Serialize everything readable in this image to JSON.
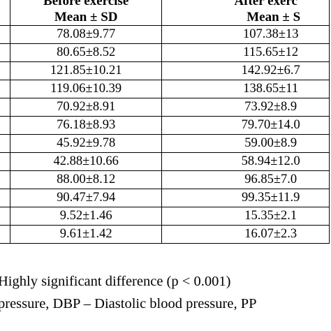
{
  "table": {
    "headers": {
      "before": {
        "line1": "Before exercise",
        "line2": "Mean ± SD"
      },
      "after": {
        "line1": "After exerc",
        "line2": "Mean ± S"
      }
    },
    "rows": [
      {
        "before": "78.08±9.77",
        "after": "107.38±13"
      },
      {
        "before": "80.65±8.52",
        "after": "115.65±12"
      },
      {
        "before": "121.85±10.21",
        "after": "142.92±6.7"
      },
      {
        "before": "119.06±10.39",
        "after": "138.65±11"
      },
      {
        "before": "70.92±8.91",
        "after": "73.92±8.9"
      },
      {
        "before": "76.18±8.93",
        "after": "79.70±14.0"
      },
      {
        "before": "45.92±9.78",
        "after": "59.00±8.9"
      },
      {
        "before": "42.88±10.66",
        "after": "58.94±12.0"
      },
      {
        "before": "88.00±8.12",
        "after": "96.85±7.0"
      },
      {
        "before": "90.47±7.94",
        "after": "99.35±11.9"
      },
      {
        "before": "9.52±1.46",
        "after": "15.35±2.1"
      },
      {
        "before": "9.61±1.42",
        "after": "16.07±2.3"
      }
    ]
  },
  "footnotes": {
    "line1": "Highly significant difference (p < 0.001)",
    "line2": "pressure, DBP – Diastolic blood pressure, PP"
  }
}
